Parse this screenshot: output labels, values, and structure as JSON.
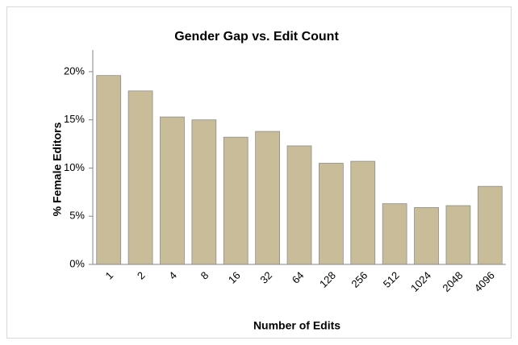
{
  "chart_data": {
    "type": "bar",
    "title": "Gender Gap vs. Edit Count",
    "x_label": "Number of Edits",
    "y_label": "% Female Editors",
    "categories": [
      "1",
      "2",
      "4",
      "8",
      "16",
      "32",
      "64",
      "128",
      "256",
      "512",
      "1024",
      "2048",
      "4096"
    ],
    "values": [
      19.6,
      18.0,
      15.3,
      15.0,
      13.2,
      13.8,
      12.3,
      10.5,
      10.7,
      6.3,
      5.9,
      6.1,
      8.1
    ],
    "color": "#c9bd99",
    "ylim": [
      0,
      22
    ],
    "yticks": [
      {
        "value": 0,
        "label": "0%"
      },
      {
        "value": 5,
        "label": "5%"
      },
      {
        "value": 10,
        "label": "10%"
      },
      {
        "value": 15,
        "label": "15%"
      },
      {
        "value": 20,
        "label": "20%"
      }
    ],
    "grid": false
  }
}
